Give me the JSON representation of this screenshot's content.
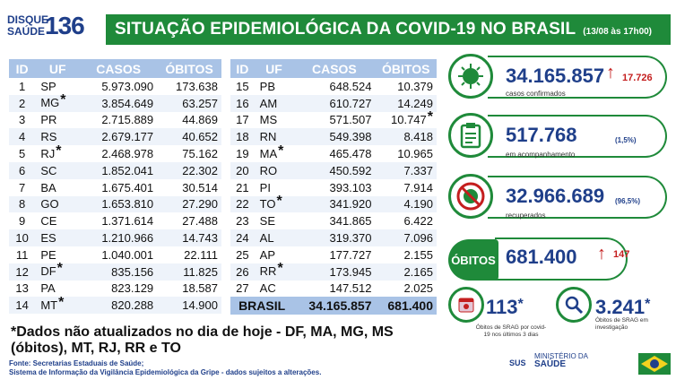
{
  "header": {
    "logo_line1": "DISQUE",
    "logo_line2": "SAÚDE",
    "logo_number": "136",
    "title": "SITUAÇÃO EPIDEMIOLÓGICA DA COVID-19 NO BRASIL",
    "date": "(13/08 às 17h00)"
  },
  "table_headers": [
    "ID",
    "UF",
    "CASOS",
    "ÓBITOS"
  ],
  "rows_left": [
    {
      "id": "1",
      "uf": "SP",
      "casos": "5.973.090",
      "obitos": "173.638",
      "ast": ""
    },
    {
      "id": "2",
      "uf": "MG",
      "casos": "3.854.649",
      "obitos": "63.257",
      "ast": "*"
    },
    {
      "id": "3",
      "uf": "PR",
      "casos": "2.715.889",
      "obitos": "44.869",
      "ast": ""
    },
    {
      "id": "4",
      "uf": "RS",
      "casos": "2.679.177",
      "obitos": "40.652",
      "ast": ""
    },
    {
      "id": "5",
      "uf": "RJ",
      "casos": "2.468.978",
      "obitos": "75.162",
      "ast": "*"
    },
    {
      "id": "6",
      "uf": "SC",
      "casos": "1.852.041",
      "obitos": "22.302",
      "ast": ""
    },
    {
      "id": "7",
      "uf": "BA",
      "casos": "1.675.401",
      "obitos": "30.514",
      "ast": ""
    },
    {
      "id": "8",
      "uf": "GO",
      "casos": "1.653.810",
      "obitos": "27.290",
      "ast": ""
    },
    {
      "id": "9",
      "uf": "CE",
      "casos": "1.371.614",
      "obitos": "27.488",
      "ast": ""
    },
    {
      "id": "10",
      "uf": "ES",
      "casos": "1.210.966",
      "obitos": "14.743",
      "ast": ""
    },
    {
      "id": "11",
      "uf": "PE",
      "casos": "1.040.001",
      "obitos": "22.111",
      "ast": ""
    },
    {
      "id": "12",
      "uf": "DF",
      "casos": "835.156",
      "obitos": "11.825",
      "ast": "*"
    },
    {
      "id": "13",
      "uf": "PA",
      "casos": "823.129",
      "obitos": "18.587",
      "ast": ""
    },
    {
      "id": "14",
      "uf": "MT",
      "casos": "820.288",
      "obitos": "14.900",
      "ast": "*"
    }
  ],
  "rows_right": [
    {
      "id": "15",
      "uf": "PB",
      "casos": "648.524",
      "obitos": "10.379",
      "ast": "",
      "oast": ""
    },
    {
      "id": "16",
      "uf": "AM",
      "casos": "610.727",
      "obitos": "14.249",
      "ast": "",
      "oast": ""
    },
    {
      "id": "17",
      "uf": "MS",
      "casos": "571.507",
      "obitos": "10.747",
      "ast": "",
      "oast": "*"
    },
    {
      "id": "18",
      "uf": "RN",
      "casos": "549.398",
      "obitos": "8.418",
      "ast": "",
      "oast": ""
    },
    {
      "id": "19",
      "uf": "MA",
      "casos": "465.478",
      "obitos": "10.965",
      "ast": "*",
      "oast": ""
    },
    {
      "id": "20",
      "uf": "RO",
      "casos": "450.592",
      "obitos": "7.337",
      "ast": "",
      "oast": ""
    },
    {
      "id": "21",
      "uf": "PI",
      "casos": "393.103",
      "obitos": "7.914",
      "ast": "",
      "oast": ""
    },
    {
      "id": "22",
      "uf": "TO",
      "casos": "341.920",
      "obitos": "4.190",
      "ast": "*",
      "oast": ""
    },
    {
      "id": "23",
      "uf": "SE",
      "casos": "341.865",
      "obitos": "6.422",
      "ast": "",
      "oast": ""
    },
    {
      "id": "24",
      "uf": "AL",
      "casos": "319.370",
      "obitos": "7.096",
      "ast": "",
      "oast": ""
    },
    {
      "id": "25",
      "uf": "AP",
      "casos": "177.727",
      "obitos": "2.155",
      "ast": "",
      "oast": ""
    },
    {
      "id": "26",
      "uf": "RR",
      "casos": "173.945",
      "obitos": "2.165",
      "ast": "*",
      "oast": ""
    },
    {
      "id": "27",
      "uf": "AC",
      "casos": "147.512",
      "obitos": "2.025",
      "ast": "",
      "oast": ""
    }
  ],
  "total": {
    "label": "BRASIL",
    "casos": "34.165.857",
    "obitos": "681.400"
  },
  "note": "*Dados não atualizados no dia de hoje - DF, MA, MG, MS (óbitos), MT, RJ, RR e TO",
  "sources": {
    "line1": "Fonte: Secretarias Estaduais de Saúde;",
    "line2": "Sistema de Informação da Vigilância Epidemiológica da Gripe - dados sujeitos a alterações."
  },
  "summary": {
    "confirmed": {
      "value": "34.165.857",
      "label": "casos confirmados",
      "delta": "17.726"
    },
    "monitoring": {
      "value": "517.768",
      "label": "em acompanhamento",
      "pct": "(1,5%)"
    },
    "recovered": {
      "value": "32.966.689",
      "label": "recuperados",
      "pct": "(96,5%)"
    },
    "deaths": {
      "tag": "ÓBITOS",
      "value": "681.400",
      "delta": "147"
    },
    "srag_3days": {
      "value": "113",
      "ast": "*",
      "label": "Óbitos de SRAG por covid-19 nos últimos 3 dias"
    },
    "srag_investigation": {
      "value": "3.241",
      "ast": "*",
      "label": "Óbitos de SRAG em investigação"
    }
  },
  "footer": {
    "sus": "SUS",
    "ministry_line1": "MINISTÉRIO DA",
    "ministry_line2": "SAÚDE"
  },
  "colors": {
    "green": "#1f8a3a",
    "blue": "#1f3f8a",
    "header_blue": "#a9c3e6",
    "red": "#c41e1e"
  }
}
